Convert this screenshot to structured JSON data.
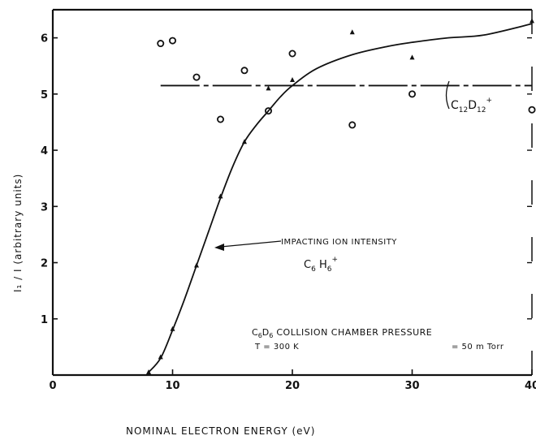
{
  "chart_data": {
    "type": "scatter",
    "title": "",
    "xlabel": "NOMINAL ELECTRON ENERGY (eV)",
    "ylabel": "I₁ / I (arbitrary units)",
    "xlim": [
      0,
      40
    ],
    "ylim": [
      0,
      6.5
    ],
    "x_ticks": [
      "0",
      "10",
      "20",
      "30",
      "40"
    ],
    "y_ticks": [
      "1",
      "2",
      "3",
      "4",
      "5",
      "6"
    ],
    "grid": false,
    "impacting_curve": {
      "label": "IMPACTING ION INTENSITY",
      "ion": "C6H6+",
      "x": [
        8,
        9,
        10,
        11,
        12,
        13,
        14,
        15,
        16,
        17,
        18,
        19,
        20,
        22,
        25,
        28,
        30,
        33,
        36,
        40
      ],
      "y": [
        0.05,
        0.3,
        0.8,
        1.35,
        1.95,
        2.55,
        3.15,
        3.7,
        4.15,
        4.45,
        4.7,
        4.95,
        5.15,
        5.45,
        5.7,
        5.85,
        5.92,
        6.0,
        6.05,
        6.25
      ]
    },
    "product_level": {
      "label": "C12D12+",
      "y": 5.15,
      "x_start": 9,
      "x_end": 40
    },
    "circles": {
      "x": [
        9,
        10,
        12,
        14,
        16,
        18,
        20,
        25,
        30,
        40
      ],
      "y": [
        5.9,
        5.95,
        5.3,
        4.55,
        5.42,
        4.7,
        5.72,
        4.45,
        5.0,
        4.72
      ]
    },
    "triangles": {
      "x": [
        8,
        9,
        10,
        12,
        14,
        16,
        18,
        20,
        25,
        30,
        40
      ],
      "y": [
        0.05,
        0.32,
        0.82,
        1.95,
        3.18,
        4.15,
        5.1,
        5.25,
        6.1,
        5.65,
        6.3
      ]
    },
    "note": {
      "line1": "C6D6 COLLISION CHAMBER PRESSURE",
      "temp": "T = 300 K",
      "pressure": "= 50 m Torr"
    }
  }
}
